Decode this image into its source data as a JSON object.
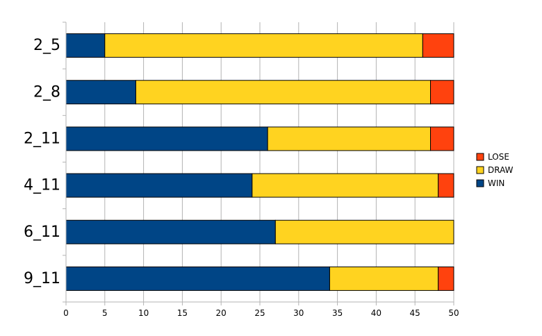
{
  "chart_data": {
    "type": "bar",
    "orientation": "horizontal",
    "stacked": true,
    "categories": [
      "2_5",
      "2_8",
      "2_11",
      "4_11",
      "6_11",
      "9_11"
    ],
    "series": [
      {
        "name": "WIN",
        "color": "#004586",
        "values": [
          5,
          9,
          26,
          24,
          27,
          34
        ]
      },
      {
        "name": "DRAW",
        "color": "#ffd320",
        "values": [
          41,
          38,
          21,
          24,
          23,
          14
        ]
      },
      {
        "name": "LOSE",
        "color": "#ff420e",
        "values": [
          4,
          3,
          3,
          2,
          0,
          2
        ]
      }
    ],
    "xlim": [
      0,
      50
    ],
    "xticks": [
      0,
      5,
      10,
      15,
      20,
      25,
      30,
      35,
      40,
      45,
      50
    ],
    "title": "",
    "xlabel": "",
    "ylabel": "",
    "grid": "vertical",
    "legend_position": "right",
    "legend_order": [
      "LOSE",
      "DRAW",
      "WIN"
    ]
  }
}
